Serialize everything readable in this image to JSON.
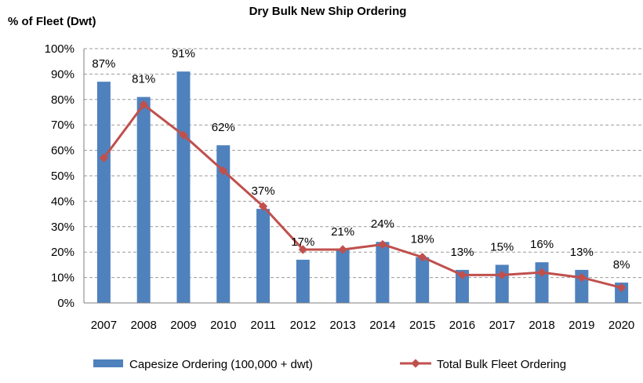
{
  "chart_data": {
    "type": "bar",
    "title": "Dry Bulk New Ship Ordering",
    "ylabel": "% of Fleet (Dwt)",
    "xlabel": "",
    "ylim": [
      0,
      100
    ],
    "yticks": [
      0,
      10,
      20,
      30,
      40,
      50,
      60,
      70,
      80,
      90,
      100
    ],
    "ytick_labels": [
      "0%",
      "10%",
      "20%",
      "30%",
      "40%",
      "50%",
      "60%",
      "70%",
      "80%",
      "90%",
      "100%"
    ],
    "grid": true,
    "legend_position": "bottom",
    "categories": [
      "2007",
      "2008",
      "2009",
      "2010",
      "2011",
      "2012",
      "2013",
      "2014",
      "2015",
      "2016",
      "2017",
      "2018",
      "2019",
      "2020"
    ],
    "series": [
      {
        "name": "Capesize Ordering (100,000 + dwt)",
        "kind": "bar",
        "color": "#4f81bd",
        "values": [
          87,
          81,
          91,
          62,
          37,
          17,
          21,
          24,
          18,
          13,
          15,
          16,
          13,
          8
        ],
        "data_labels": [
          "87%",
          "81%",
          "91%",
          "62%",
          "37%",
          "17%",
          "21%",
          "24%",
          "18%",
          "13%",
          "15%",
          "16%",
          "13%",
          "8%"
        ]
      },
      {
        "name": "Total Bulk Fleet Ordering",
        "kind": "line",
        "color": "#c0504d",
        "values": [
          57,
          78,
          66,
          52,
          38,
          21,
          21,
          23,
          18,
          11,
          11,
          12,
          10,
          6
        ]
      }
    ]
  }
}
